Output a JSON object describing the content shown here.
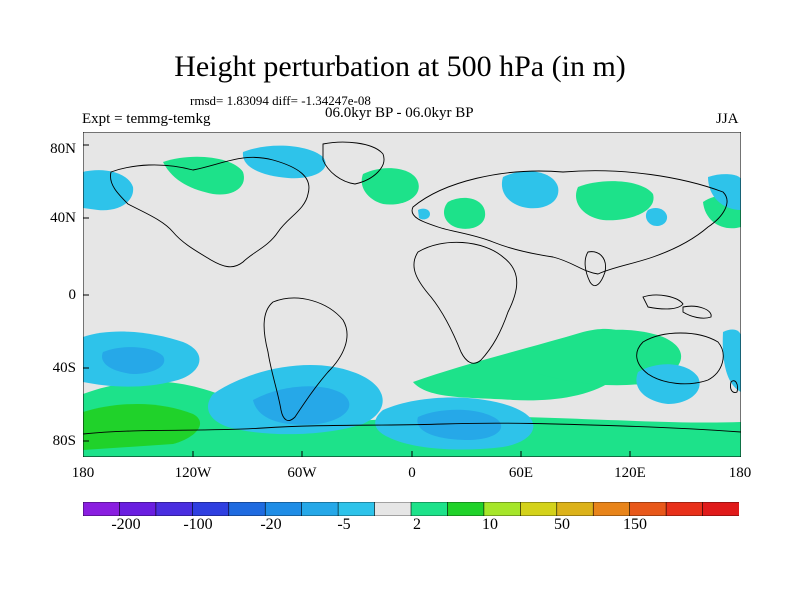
{
  "title": "Height perturbation at 500 hPa (in m)",
  "stats": "rmsd= 1.83094 diff= -1.34247e-08",
  "period": "06.0kyr BP - 06.0kyr BP",
  "experiment": "Expt = temmg-temkg",
  "season": "JJA",
  "lat_labels": [
    "80N",
    "40N",
    "0",
    "40S",
    "80S"
  ],
  "lon_labels": [
    "180",
    "120W",
    "60W",
    "0",
    "60E",
    "120E",
    "180"
  ],
  "colorbar": {
    "colors": [
      "#8a1ee0",
      "#6a1ee0",
      "#4a2ee0",
      "#2f3fe0",
      "#1f6be0",
      "#1f8de6",
      "#26a8e8",
      "#2ec3ea",
      "#e6e6e6",
      "#1de28a",
      "#20d22a",
      "#a6e62a",
      "#d4d21a",
      "#dcb21a",
      "#e8841a",
      "#e8581a",
      "#e8301a",
      "#e01a1a"
    ],
    "labels": [
      "-200",
      "-100",
      "-20",
      "-5",
      "2",
      "10",
      "50",
      "150"
    ]
  },
  "colors": {
    "land_ocean_bg": "#e6e6e6",
    "coast": "#000000"
  }
}
